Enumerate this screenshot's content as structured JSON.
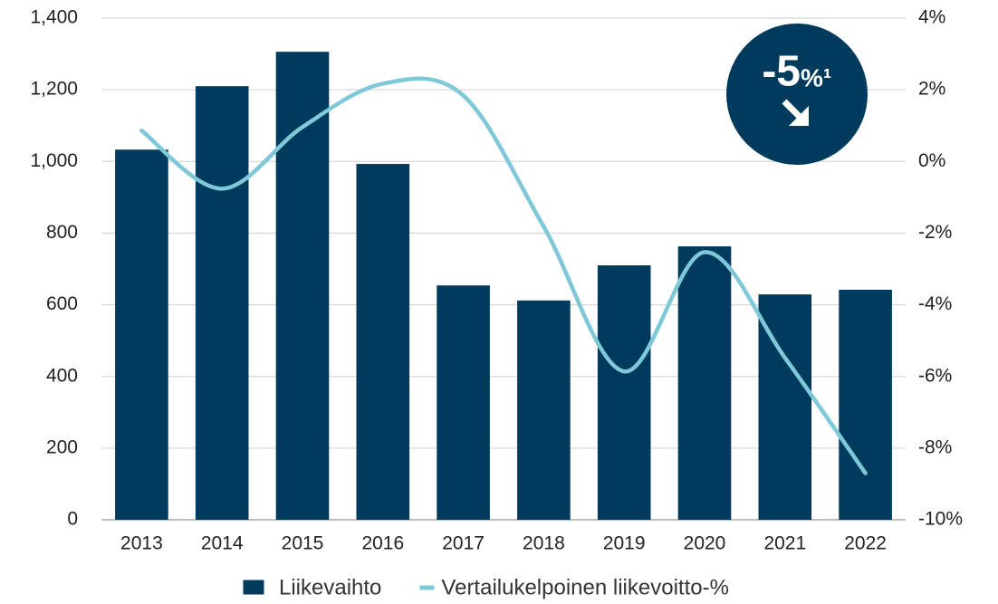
{
  "chart_data": {
    "type": "bar-line",
    "categories": [
      "2013",
      "2014",
      "2015",
      "2016",
      "2017",
      "2018",
      "2019",
      "2020",
      "2021",
      "2022"
    ],
    "series": [
      {
        "name": "Liikevaihto",
        "color": "#003a5d",
        "type": "bar",
        "values": [
          1033,
          1210,
          1306,
          993,
          654,
          612,
          710,
          763,
          629,
          642
        ]
      },
      {
        "name": "Vertailukelpoinen liikevoitto-%",
        "color": "#7ec8d8",
        "type": "line",
        "axis": "y2",
        "values": [
          0.86,
          -0.76,
          0.96,
          2.17,
          1.84,
          -1.82,
          -5.86,
          -2.53,
          -5.48,
          -8.7
        ]
      }
    ],
    "ylim": [
      0,
      1400
    ],
    "yticks": [
      0,
      200,
      400,
      600,
      800,
      {
        "value": 1000,
        "label": "1,000"
      },
      {
        "value": 1200,
        "label": "1,200"
      },
      {
        "value": 1400,
        "label": "1,400"
      }
    ],
    "y2lim": [
      -10,
      4
    ],
    "y2ticks": [
      {
        "value": -10,
        "label": "-10%"
      },
      {
        "value": -8,
        "label": "-8%"
      },
      {
        "value": -6,
        "label": "-6%"
      },
      {
        "value": -4,
        "label": "-4%"
      },
      {
        "value": -2,
        "label": "-2%"
      },
      {
        "value": 0,
        "label": "0%"
      },
      {
        "value": 2,
        "label": "2%"
      },
      {
        "value": 4,
        "label": "4%"
      }
    ],
    "grid": true,
    "legend": "bottom",
    "annotation": {
      "text": "-5",
      "suffix": "%¹"
    }
  }
}
